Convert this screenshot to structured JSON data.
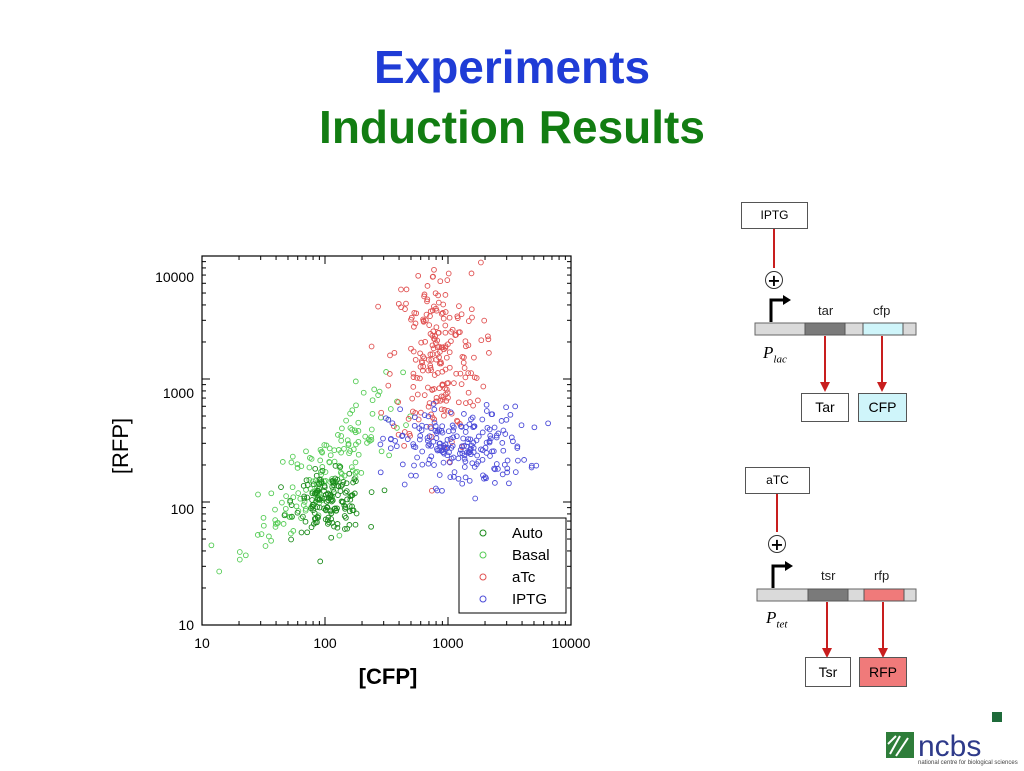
{
  "slide": {
    "title": "Experiments",
    "subtitle": "Induction Results"
  },
  "chart_data": {
    "type": "scatter",
    "xlabel": "[CFP]",
    "ylabel": "[RFP]",
    "xscale": "log",
    "yscale": "log",
    "xlim": [
      10,
      10000
    ],
    "ylim": [
      10,
      10000
    ],
    "x_ticks": [
      "10",
      "100",
      "1000",
      "10000"
    ],
    "y_ticks": [
      "10",
      "100",
      "1000",
      "10000"
    ],
    "grid": false,
    "legend_position": "bottom-right",
    "series": [
      {
        "name": "Auto",
        "color": "#1a8a1a",
        "center": [
          110,
          100
        ],
        "spread": [
          0.14,
          0.12
        ],
        "count": 150,
        "marker": "open-circle"
      },
      {
        "name": "Basal",
        "color": "#55cc55",
        "center": [
          100,
          180
        ],
        "spread": [
          0.3,
          0.3
        ],
        "count": 160,
        "marker": "open-circle"
      },
      {
        "name": "aTc",
        "color": "#e05050",
        "center": [
          800,
          1500
        ],
        "spread": [
          0.18,
          0.38
        ],
        "count": 220,
        "marker": "open-circle"
      },
      {
        "name": "IPTG",
        "color": "#4a4ad8",
        "center": [
          1200,
          280
        ],
        "spread": [
          0.28,
          0.16
        ],
        "count": 210,
        "marker": "open-circle"
      }
    ]
  },
  "diagram": {
    "lac": {
      "inducer": "IPTG",
      "plus": "+",
      "promoter": "P",
      "promoter_sub": "lac",
      "gene1": "tar",
      "gene2": "cfp",
      "protein1": "Tar",
      "protein2": "CFP"
    },
    "tet": {
      "inducer": "aTC",
      "plus": "+",
      "promoter": "P",
      "promoter_sub": "tet",
      "gene1": "tsr",
      "gene2": "rfp",
      "protein1": "Tsr",
      "protein2": "RFP"
    },
    "colors": {
      "cfp": "#cff5fa",
      "rfp": "#f07a7a",
      "gene_dark": "#7a7a7a",
      "arrow": "#c81e1e"
    }
  },
  "logo": {
    "text": "ncbs",
    "tagline": "national centre for biological sciences"
  }
}
